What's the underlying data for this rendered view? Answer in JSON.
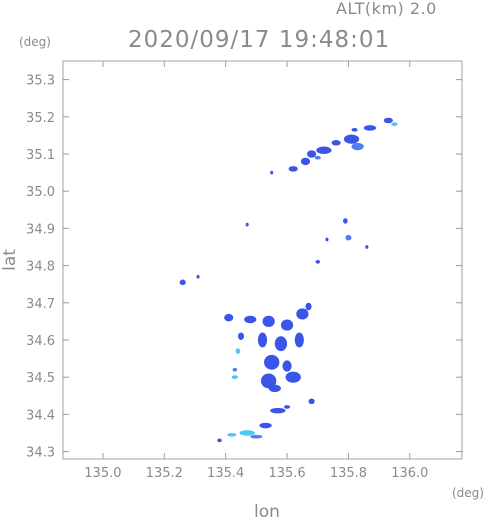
{
  "header": {
    "altitude_label": "ALT(km)",
    "altitude_value": "2.0",
    "datetime": "2020/09/17 19:48:01"
  },
  "chart_data": {
    "type": "heatmap",
    "title": "2020/09/17 19:48:01",
    "subtitle": "ALT(km) 2.0",
    "xlabel": "lon",
    "ylabel": "lat",
    "x_unit": "(deg)",
    "y_unit": "(deg)",
    "xlim": [
      134.87,
      136.17
    ],
    "ylim": [
      34.28,
      35.35
    ],
    "xticks": [
      135.0,
      135.2,
      135.4,
      135.6,
      135.8,
      136.0
    ],
    "yticks": [
      34.3,
      34.4,
      34.5,
      34.6,
      34.7,
      34.8,
      34.9,
      35.0,
      35.1,
      35.2,
      35.3
    ],
    "xtick_labels": [
      "135.0",
      "135.2",
      "135.4",
      "135.6",
      "135.8",
      "136.0"
    ],
    "ytick_labels": [
      "34.3",
      "34.4",
      "34.5",
      "34.6",
      "34.7",
      "34.8",
      "34.9",
      "35.0",
      "35.1",
      "35.2",
      "35.3"
    ],
    "grid": false,
    "colors": {
      "strong": "#3a55e8",
      "medium": "#4f7df2",
      "light": "#4fc8f0",
      "axis": "#9a9a9a"
    },
    "cells": [
      {
        "lon": 135.93,
        "lat": 35.19,
        "w": 0.03,
        "h": 0.015,
        "level": "strong"
      },
      {
        "lon": 135.95,
        "lat": 35.18,
        "w": 0.02,
        "h": 0.01,
        "level": "light"
      },
      {
        "lon": 135.87,
        "lat": 35.17,
        "w": 0.04,
        "h": 0.015,
        "level": "strong"
      },
      {
        "lon": 135.82,
        "lat": 35.165,
        "w": 0.02,
        "h": 0.01,
        "level": "strong"
      },
      {
        "lon": 135.81,
        "lat": 35.14,
        "w": 0.05,
        "h": 0.025,
        "level": "strong"
      },
      {
        "lon": 135.83,
        "lat": 35.12,
        "w": 0.04,
        "h": 0.02,
        "level": "medium"
      },
      {
        "lon": 135.76,
        "lat": 35.13,
        "w": 0.03,
        "h": 0.015,
        "level": "strong"
      },
      {
        "lon": 135.72,
        "lat": 35.11,
        "w": 0.05,
        "h": 0.02,
        "level": "strong"
      },
      {
        "lon": 135.68,
        "lat": 35.1,
        "w": 0.03,
        "h": 0.02,
        "level": "strong"
      },
      {
        "lon": 135.66,
        "lat": 35.08,
        "w": 0.03,
        "h": 0.02,
        "level": "strong"
      },
      {
        "lon": 135.62,
        "lat": 35.06,
        "w": 0.03,
        "h": 0.015,
        "level": "strong"
      },
      {
        "lon": 135.7,
        "lat": 35.09,
        "w": 0.02,
        "h": 0.01,
        "level": "medium"
      },
      {
        "lon": 135.55,
        "lat": 35.05,
        "w": 0.01,
        "h": 0.01,
        "level": "strong"
      },
      {
        "lon": 135.47,
        "lat": 34.91,
        "w": 0.01,
        "h": 0.01,
        "level": "strong"
      },
      {
        "lon": 135.79,
        "lat": 34.92,
        "w": 0.015,
        "h": 0.015,
        "level": "strong"
      },
      {
        "lon": 135.8,
        "lat": 34.875,
        "w": 0.02,
        "h": 0.015,
        "level": "medium"
      },
      {
        "lon": 135.73,
        "lat": 34.87,
        "w": 0.01,
        "h": 0.01,
        "level": "strong"
      },
      {
        "lon": 135.86,
        "lat": 34.85,
        "w": 0.01,
        "h": 0.01,
        "level": "strong"
      },
      {
        "lon": 135.7,
        "lat": 34.81,
        "w": 0.015,
        "h": 0.01,
        "level": "strong"
      },
      {
        "lon": 135.26,
        "lat": 34.755,
        "w": 0.02,
        "h": 0.015,
        "level": "strong"
      },
      {
        "lon": 135.31,
        "lat": 34.77,
        "w": 0.01,
        "h": 0.01,
        "level": "strong"
      },
      {
        "lon": 135.41,
        "lat": 34.66,
        "w": 0.03,
        "h": 0.02,
        "level": "strong"
      },
      {
        "lon": 135.48,
        "lat": 34.655,
        "w": 0.04,
        "h": 0.02,
        "level": "strong"
      },
      {
        "lon": 135.54,
        "lat": 34.65,
        "w": 0.04,
        "h": 0.03,
        "level": "strong"
      },
      {
        "lon": 135.6,
        "lat": 34.64,
        "w": 0.04,
        "h": 0.03,
        "level": "strong"
      },
      {
        "lon": 135.65,
        "lat": 34.67,
        "w": 0.04,
        "h": 0.03,
        "level": "strong"
      },
      {
        "lon": 135.67,
        "lat": 34.69,
        "w": 0.02,
        "h": 0.02,
        "level": "strong"
      },
      {
        "lon": 135.45,
        "lat": 34.61,
        "w": 0.02,
        "h": 0.02,
        "level": "strong"
      },
      {
        "lon": 135.52,
        "lat": 34.6,
        "w": 0.03,
        "h": 0.04,
        "level": "strong"
      },
      {
        "lon": 135.58,
        "lat": 34.59,
        "w": 0.04,
        "h": 0.04,
        "level": "strong"
      },
      {
        "lon": 135.64,
        "lat": 34.6,
        "w": 0.03,
        "h": 0.04,
        "level": "strong"
      },
      {
        "lon": 135.44,
        "lat": 34.57,
        "w": 0.015,
        "h": 0.015,
        "level": "light"
      },
      {
        "lon": 135.55,
        "lat": 34.54,
        "w": 0.05,
        "h": 0.04,
        "level": "strong"
      },
      {
        "lon": 135.6,
        "lat": 34.53,
        "w": 0.03,
        "h": 0.03,
        "level": "strong"
      },
      {
        "lon": 135.54,
        "lat": 34.49,
        "w": 0.05,
        "h": 0.04,
        "level": "strong"
      },
      {
        "lon": 135.62,
        "lat": 34.5,
        "w": 0.05,
        "h": 0.03,
        "level": "strong"
      },
      {
        "lon": 135.56,
        "lat": 34.47,
        "w": 0.04,
        "h": 0.02,
        "level": "strong"
      },
      {
        "lon": 135.43,
        "lat": 34.52,
        "w": 0.015,
        "h": 0.01,
        "level": "medium"
      },
      {
        "lon": 135.43,
        "lat": 34.5,
        "w": 0.02,
        "h": 0.01,
        "level": "light"
      },
      {
        "lon": 135.68,
        "lat": 34.435,
        "w": 0.02,
        "h": 0.015,
        "level": "strong"
      },
      {
        "lon": 135.57,
        "lat": 34.41,
        "w": 0.05,
        "h": 0.015,
        "level": "strong"
      },
      {
        "lon": 135.6,
        "lat": 34.42,
        "w": 0.02,
        "h": 0.01,
        "level": "strong"
      },
      {
        "lon": 135.53,
        "lat": 34.37,
        "w": 0.04,
        "h": 0.015,
        "level": "strong"
      },
      {
        "lon": 135.47,
        "lat": 34.35,
        "w": 0.05,
        "h": 0.015,
        "level": "light"
      },
      {
        "lon": 135.42,
        "lat": 34.345,
        "w": 0.03,
        "h": 0.01,
        "level": "light"
      },
      {
        "lon": 135.38,
        "lat": 34.33,
        "w": 0.015,
        "h": 0.01,
        "level": "strong"
      },
      {
        "lon": 135.5,
        "lat": 34.34,
        "w": 0.04,
        "h": 0.01,
        "level": "medium"
      }
    ]
  }
}
